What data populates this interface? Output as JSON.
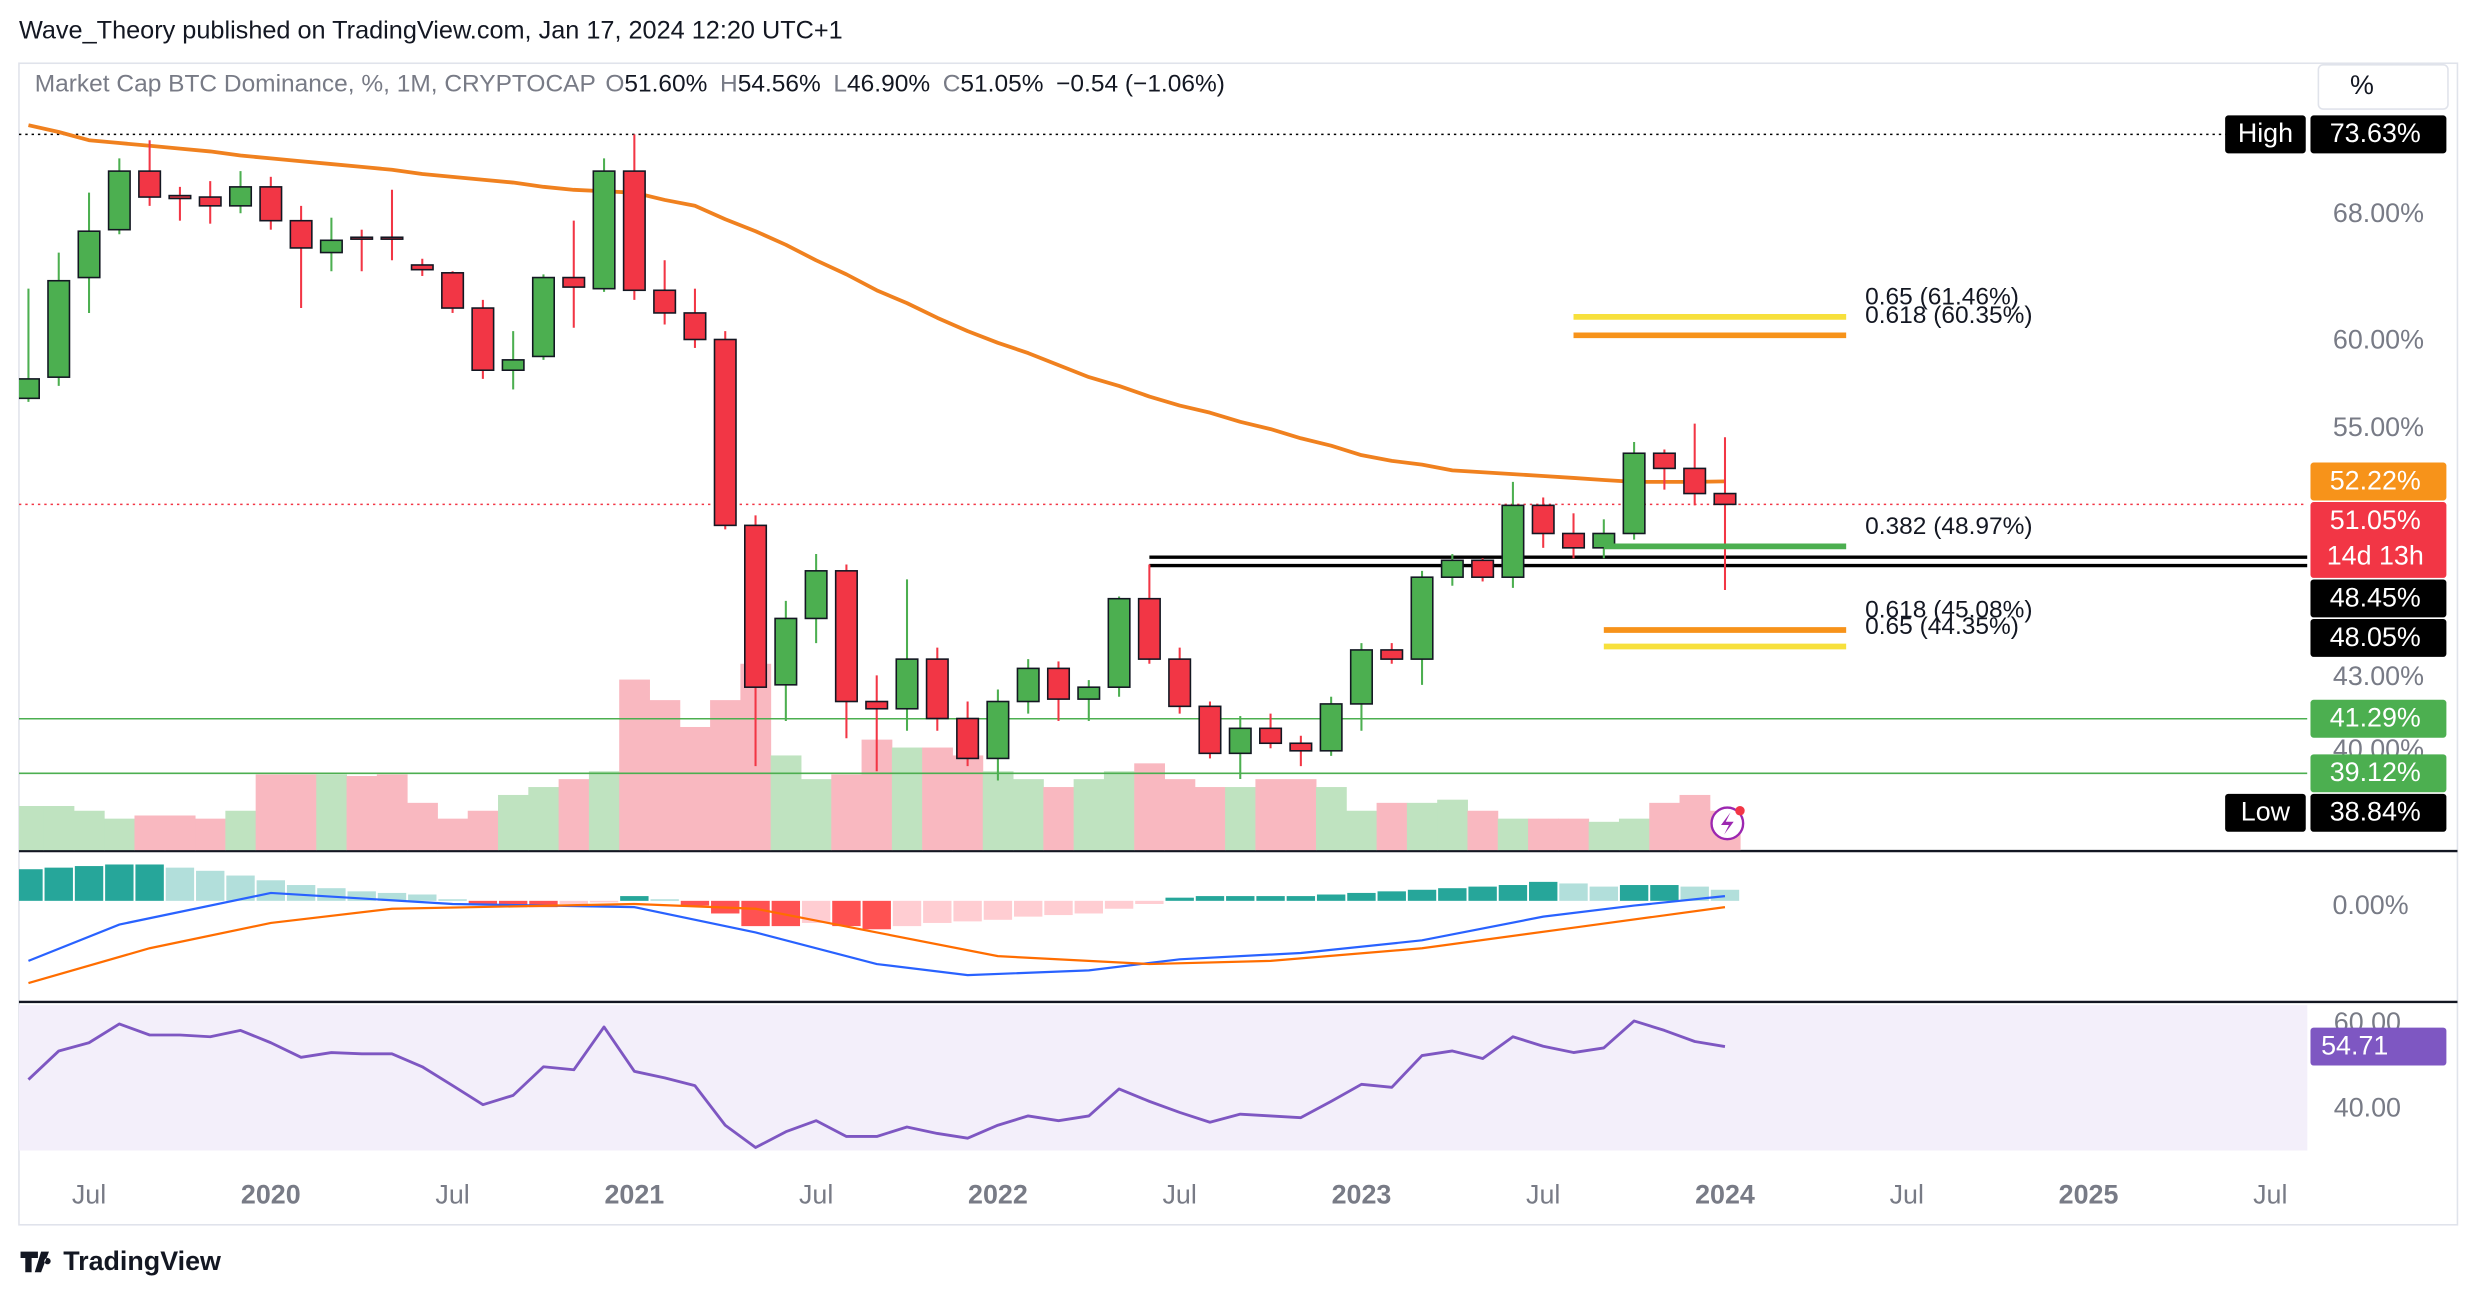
{
  "header": {
    "text": "Wave_Theory published on TradingView.com, Jan 17, 2024 12:20 UTC+1"
  },
  "footer": {
    "logo": "TradingView"
  },
  "axis_unit": "%",
  "chart_data": {
    "type": "candlestick",
    "legend": {
      "name": "Market Cap BTC Dominance, %, 1M, CRYPTOCAP",
      "fields": [
        {
          "key": "O",
          "label": "51.60%"
        },
        {
          "key": "H",
          "label": "54.56%"
        },
        {
          "key": "L",
          "label": "46.90%"
        },
        {
          "key": "C",
          "label": "51.05%"
        }
      ],
      "change": "−0.54 (−1.06%)"
    },
    "x": [
      "2019-05",
      "2019-06",
      "2019-07",
      "2019-08",
      "2019-09",
      "2019-10",
      "2019-11",
      "2019-12",
      "2020-01",
      "2020-02",
      "2020-03",
      "2020-04",
      "2020-05",
      "2020-06",
      "2020-07",
      "2020-08",
      "2020-09",
      "2020-10",
      "2020-11",
      "2020-12",
      "2021-01",
      "2021-02",
      "2021-03",
      "2021-04",
      "2021-05",
      "2021-06",
      "2021-07",
      "2021-08",
      "2021-09",
      "2021-10",
      "2021-11",
      "2021-12",
      "2022-01",
      "2022-02",
      "2022-03",
      "2022-04",
      "2022-05",
      "2022-06",
      "2022-07",
      "2022-08",
      "2022-09",
      "2022-10",
      "2022-11",
      "2022-12",
      "2023-01",
      "2023-02",
      "2023-03",
      "2023-04",
      "2023-05",
      "2023-06",
      "2023-07",
      "2023-08",
      "2023-09",
      "2023-10",
      "2023-11",
      "2023-12",
      "2024-01"
    ],
    "open": [
      56.7,
      57.9,
      63.9,
      67.0,
      71.0,
      69.3,
      69.2,
      68.6,
      69.9,
      67.6,
      65.5,
      66.5,
      66.5,
      64.7,
      64.2,
      62.0,
      58.3,
      59.1,
      63.9,
      63.2,
      71.0,
      63.1,
      61.7,
      60.1,
      50.0,
      42.7,
      45.6,
      47.8,
      42.0,
      41.7,
      43.8,
      41.3,
      39.7,
      42.0,
      43.4,
      42.1,
      42.6,
      46.5,
      43.8,
      41.8,
      39.9,
      40.9,
      40.3,
      40.0,
      41.9,
      44.2,
      43.8,
      47.5,
      48.3,
      47.5,
      51.0,
      49.6,
      48.9,
      49.6,
      53.7,
      52.9,
      51.6
    ],
    "high": [
      63.2,
      65.5,
      69.5,
      71.9,
      73.2,
      69.9,
      70.3,
      71.0,
      70.6,
      68.6,
      67.8,
      67.0,
      69.7,
      65.1,
      64.3,
      62.5,
      60.6,
      64.1,
      67.6,
      71.9,
      73.63,
      65.0,
      63.2,
      60.6,
      50.5,
      46.4,
      48.6,
      48.1,
      43.1,
      47.4,
      44.3,
      42.0,
      42.5,
      43.8,
      43.7,
      42.9,
      46.6,
      48.1,
      44.3,
      42.0,
      41.4,
      41.5,
      40.6,
      42.2,
      44.5,
      44.5,
      47.8,
      48.6,
      48.4,
      52.2,
      51.4,
      50.6,
      50.3,
      54.3,
      53.9,
      55.3,
      54.56
    ],
    "low": [
      56.5,
      57.4,
      61.7,
      66.7,
      68.6,
      67.6,
      67.4,
      68.1,
      67.0,
      62.0,
      64.3,
      64.3,
      65.0,
      64.0,
      61.7,
      57.8,
      57.2,
      58.9,
      60.8,
      63.0,
      62.5,
      61.0,
      59.6,
      49.8,
      39.4,
      41.2,
      44.5,
      40.5,
      39.2,
      40.8,
      40.8,
      39.4,
      38.84,
      41.5,
      41.2,
      41.2,
      42.2,
      43.6,
      41.5,
      39.7,
      38.9,
      40.1,
      39.4,
      39.8,
      40.8,
      43.6,
      42.7,
      47.1,
      47.3,
      47.0,
      48.9,
      48.4,
      48.4,
      49.3,
      51.8,
      51.0,
      46.9
    ],
    "close": [
      57.8,
      63.7,
      66.9,
      71.0,
      69.2,
      69.1,
      68.6,
      69.9,
      67.6,
      65.8,
      66.3,
      66.4,
      66.4,
      64.4,
      62.0,
      58.3,
      58.9,
      63.9,
      63.3,
      71.0,
      63.1,
      61.7,
      60.1,
      50.0,
      42.6,
      45.6,
      47.8,
      42.0,
      41.7,
      43.8,
      41.3,
      39.7,
      42.0,
      43.4,
      42.1,
      42.6,
      46.5,
      43.8,
      41.8,
      39.9,
      40.9,
      40.3,
      40.0,
      41.9,
      44.2,
      43.8,
      47.5,
      48.3,
      47.5,
      51.0,
      49.6,
      48.9,
      49.6,
      53.7,
      52.9,
      51.6,
      51.05
    ],
    "up_color": "#4caf50",
    "down_color": "#f23645",
    "ma_values": [
      74.3,
      73.8,
      73.2,
      73.0,
      72.8,
      72.6,
      72.4,
      72.1,
      71.9,
      71.7,
      71.5,
      71.3,
      71.1,
      70.8,
      70.6,
      70.4,
      70.2,
      69.9,
      69.7,
      69.6,
      69.5,
      69.0,
      68.6,
      67.7,
      66.9,
      66.0,
      65.0,
      64.1,
      63.1,
      62.3,
      61.4,
      60.6,
      59.9,
      59.3,
      58.6,
      57.9,
      57.4,
      56.8,
      56.3,
      55.9,
      55.4,
      55.0,
      54.5,
      54.1,
      53.6,
      53.3,
      53.1,
      52.8,
      52.7,
      52.6,
      52.5,
      52.4,
      52.3,
      52.2,
      52.2,
      52.2,
      52.22
    ],
    "ma_color": "#f0811f",
    "volume": [
      28,
      28,
      25,
      20,
      22,
      22,
      20,
      25,
      48,
      48,
      48,
      47,
      48,
      30,
      20,
      25,
      35,
      40,
      45,
      50,
      108,
      95,
      78,
      95,
      118,
      60,
      45,
      48,
      70,
      65,
      65,
      60,
      50,
      45,
      40,
      45,
      50,
      55,
      45,
      40,
      40,
      45,
      45,
      40,
      25,
      30,
      30,
      32,
      25,
      20,
      20,
      20,
      18,
      20,
      30,
      35,
      25
    ],
    "volume_lim": [
      0,
      140
    ],
    "volume_up_color": "#bfe3c0",
    "volume_down_color": "#f9b8c0",
    "ylim": [
      36.25,
      79.0
    ],
    "log_scale": true,
    "yticks": [
      {
        "value": 68,
        "label": "68.00%"
      },
      {
        "value": 60,
        "label": "60.00%"
      },
      {
        "value": 55,
        "label": "55.00%"
      },
      {
        "value": 43,
        "label": "43.00%"
      },
      {
        "value": 40,
        "label": "40.00%"
      }
    ],
    "xticks": [
      {
        "value": "2019-07",
        "label": "Jul"
      },
      {
        "value": "2020-01",
        "label": "2020"
      },
      {
        "value": "2020-07",
        "label": "Jul"
      },
      {
        "value": "2021-01",
        "label": "2021"
      },
      {
        "value": "2021-07",
        "label": "Jul"
      },
      {
        "value": "2022-01",
        "label": "2022"
      },
      {
        "value": "2022-07",
        "label": "Jul"
      },
      {
        "value": "2023-01",
        "label": "2023"
      },
      {
        "value": "2023-07",
        "label": "Jul"
      },
      {
        "value": "2024-01",
        "label": "2024"
      },
      {
        "value": "2024-07",
        "label": "Jul"
      },
      {
        "value": "2025-01",
        "label": "2025"
      },
      {
        "value": "2025-07",
        "label": "Jul"
      }
    ],
    "fib_levels": [
      {
        "label": "0.65 (61.46%)",
        "value": 61.46,
        "color": "#f7e03c",
        "from": "2023-08",
        "to": "2024-05"
      },
      {
        "label": "0.618 (60.35%)",
        "value": 60.35,
        "color": "#f7931a",
        "from": "2023-08",
        "to": "2024-05"
      },
      {
        "label": "0.382 (48.97%)",
        "value": 48.97,
        "color": "#4caf50",
        "from": "2023-09",
        "to": "2024-05"
      },
      {
        "label": "0.618 (45.08%)",
        "value": 45.08,
        "color": "#f7931a",
        "from": "2023-09",
        "to": "2024-05"
      },
      {
        "label": "0.65 (44.35%)",
        "value": 44.35,
        "color": "#f7e03c",
        "from": "2023-09",
        "to": "2024-05"
      }
    ],
    "price_tags": [
      {
        "title": "High",
        "value": 73.63,
        "label": "73.63%",
        "color": "#000000",
        "line": "dotted"
      },
      {
        "value": 52.22,
        "label": "52.22%",
        "color": "#f7931a"
      },
      {
        "value": 51.05,
        "label": "51.05%",
        "sub": "14d 13h",
        "color": "#f23645",
        "line": "dotted"
      },
      {
        "value": 48.45,
        "label": "48.45%",
        "color": "#000000",
        "line": "solid",
        "from": "2022-06"
      },
      {
        "value": 48.05,
        "label": "48.05%",
        "color": "#000000",
        "line": "solid",
        "from": "2022-06"
      },
      {
        "value": 41.29,
        "label": "41.29%",
        "color": "#4caf50",
        "line": "solid"
      },
      {
        "value": 39.12,
        "label": "39.12%",
        "color": "#4caf50",
        "line": "solid"
      },
      {
        "title": "Low",
        "value": 38.84,
        "label": "38.84%",
        "color": "#000000"
      }
    ],
    "macd": {
      "ylim": [
        -6.2,
        3.0
      ],
      "yticks": [
        {
          "value": 0,
          "label": "0.00%"
        }
      ],
      "histogram": [
        2.0,
        2.1,
        2.2,
        2.3,
        2.3,
        2.1,
        1.9,
        1.6,
        1.3,
        1.0,
        0.8,
        0.6,
        0.5,
        0.4,
        0.1,
        -0.2,
        -0.4,
        -0.4,
        -0.2,
        -0.1,
        0.3,
        0.1,
        -0.3,
        -0.8,
        -1.6,
        -1.6,
        -1.4,
        -1.6,
        -1.8,
        -1.6,
        -1.4,
        -1.3,
        -1.2,
        -1.0,
        -0.9,
        -0.8,
        -0.5,
        -0.2,
        0.2,
        0.3,
        0.3,
        0.3,
        0.3,
        0.4,
        0.5,
        0.6,
        0.7,
        0.8,
        0.9,
        1.0,
        1.2,
        1.1,
        0.9,
        1.0,
        1.0,
        0.9,
        0.7
      ],
      "hist_colors": [
        "#26a69a",
        "#b2dfdb",
        "#ff5252",
        "#ffcdd2"
      ],
      "lines": [
        {
          "color": "#2962ff",
          "x": [
            "2019-05",
            "2019-08",
            "2020-01",
            "2020-07",
            "2021-01",
            "2021-05",
            "2021-09",
            "2021-12",
            "2022-04",
            "2022-07",
            "2022-11",
            "2023-03",
            "2023-07",
            "2023-10",
            "2024-01"
          ],
          "values": [
            -3.8,
            -1.5,
            0.5,
            -0.2,
            -0.4,
            -2.0,
            -4.0,
            -4.7,
            -4.4,
            -3.7,
            -3.3,
            -2.5,
            -1.0,
            -0.3,
            0.3
          ]
        },
        {
          "color": "#ff6d00",
          "x": [
            "2019-05",
            "2019-09",
            "2020-01",
            "2020-05",
            "2021-01",
            "2021-05",
            "2021-09",
            "2022-01",
            "2022-06",
            "2022-10",
            "2023-03",
            "2023-08",
            "2024-01"
          ],
          "values": [
            -5.2,
            -3.0,
            -1.4,
            -0.5,
            -0.2,
            -0.5,
            -2.0,
            -3.5,
            -4.0,
            -3.8,
            -3.0,
            -1.7,
            -0.4
          ]
        }
      ]
    },
    "rsi": {
      "ylim": [
        30.4,
        64.4
      ],
      "yticks": [
        {
          "value": 60,
          "label": "60.00"
        },
        {
          "value": 40,
          "label": "40.00"
        }
      ],
      "color": "#7e57c2",
      "values": [
        47.0,
        53.7,
        55.6,
        60.0,
        57.4,
        57.4,
        57.0,
        58.5,
        55.6,
        52.2,
        53.3,
        53.0,
        53.0,
        50.0,
        45.6,
        41.1,
        43.3,
        50.0,
        49.3,
        59.3,
        48.9,
        47.4,
        45.6,
        36.3,
        31.1,
        34.8,
        37.4,
        33.7,
        33.7,
        35.9,
        34.4,
        33.3,
        36.3,
        38.5,
        37.4,
        38.5,
        44.8,
        41.9,
        39.3,
        37.0,
        38.9,
        38.5,
        38.1,
        41.9,
        45.9,
        45.2,
        52.6,
        53.7,
        51.9,
        57.0,
        54.8,
        53.3,
        54.4,
        60.7,
        58.5,
        55.9,
        54.71
      ]
    }
  }
}
